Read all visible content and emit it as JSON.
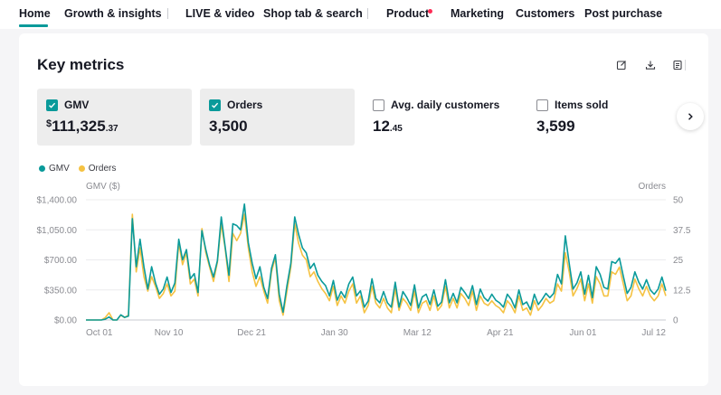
{
  "nav": {
    "items": [
      {
        "label": "Home"
      },
      {
        "label": "Growth & insights"
      },
      {
        "label": "LIVE & video"
      },
      {
        "label": "Shop tab & search"
      },
      {
        "label": "Product"
      },
      {
        "label": "Marketing"
      },
      {
        "label": "Customers"
      },
      {
        "label": "Post purchase"
      }
    ],
    "active": "Home",
    "product_dot_color": "#fe2c55"
  },
  "card": {
    "title": "Key metrics",
    "tools": [
      "edit-icon",
      "download-icon",
      "report-icon"
    ]
  },
  "metrics": [
    {
      "label": "GMV",
      "checked": true,
      "currency": "$",
      "main": "111,325",
      "decimal": ".37"
    },
    {
      "label": "Orders",
      "checked": true,
      "main": "3,500",
      "decimal": ""
    },
    {
      "label": "Avg. daily customers",
      "checked": false,
      "main": "12",
      "decimal": ".45"
    },
    {
      "label": "Items sold",
      "checked": false,
      "main": "3,599",
      "decimal": ""
    }
  ],
  "legend": [
    {
      "name": "GMV",
      "color": "#0a9a9a"
    },
    {
      "name": "Orders",
      "color": "#f5c242"
    }
  ],
  "chart_data": {
    "type": "line",
    "left_axis_label": "GMV ($)",
    "right_axis_label": "Orders",
    "left_ticks": [
      "$0.00",
      "$350.00",
      "$700.00",
      "$1,050.00",
      "$1,400.00"
    ],
    "right_ticks": [
      "0",
      "12.5",
      "25",
      "37.5",
      "50"
    ],
    "ylim_left": [
      0,
      1400
    ],
    "ylim_right": [
      0,
      50
    ],
    "x_ticks": [
      "Oct 01",
      "Nov 10",
      "Dec 21",
      "Jan 30",
      "Mar 12",
      "Apr 21",
      "Jun 01",
      "Jul 12"
    ],
    "grid": true,
    "series": [
      {
        "name": "GMV",
        "color": "#0a9a9a",
        "axis": "left",
        "values": [
          0,
          0,
          0,
          0,
          0,
          10,
          35,
          0,
          0,
          60,
          30,
          45,
          1180,
          620,
          940,
          620,
          360,
          620,
          430,
          300,
          360,
          500,
          320,
          430,
          940,
          700,
          820,
          480,
          540,
          320,
          1040,
          820,
          640,
          500,
          690,
          1200,
          860,
          520,
          1120,
          1100,
          1050,
          1350,
          900,
          660,
          480,
          620,
          380,
          250,
          600,
          760,
          300,
          90,
          400,
          660,
          1200,
          1000,
          840,
          780,
          600,
          660,
          520,
          450,
          400,
          280,
          460,
          230,
          330,
          260,
          420,
          500,
          280,
          340,
          150,
          220,
          480,
          250,
          200,
          330,
          200,
          150,
          440,
          150,
          330,
          260,
          170,
          410,
          140,
          270,
          300,
          180,
          350,
          160,
          210,
          470,
          200,
          310,
          200,
          380,
          320,
          250,
          400,
          180,
          360,
          260,
          220,
          300,
          230,
          200,
          150,
          300,
          240,
          140,
          350,
          180,
          210,
          120,
          300,
          180,
          240,
          310,
          260,
          310,
          530,
          420,
          980,
          660,
          360,
          430,
          560,
          300,
          520,
          260,
          620,
          530,
          380,
          360,
          680,
          660,
          720,
          510,
          310,
          380,
          560,
          440,
          360,
          470,
          350,
          300,
          360,
          500,
          340
        ]
      },
      {
        "name": "Orders",
        "color": "#f5c242",
        "axis": "right",
        "values": [
          0,
          0,
          0,
          0,
          0,
          1,
          3,
          0,
          0,
          2,
          1,
          2,
          44,
          20,
          30,
          18,
          12,
          18,
          14,
          9,
          11,
          15,
          10,
          12,
          32,
          23,
          28,
          15,
          17,
          10,
          38,
          28,
          22,
          16,
          24,
          40,
          30,
          16,
          36,
          33,
          36,
          44,
          30,
          20,
          14,
          18,
          12,
          7,
          20,
          26,
          8,
          2,
          12,
          22,
          40,
          32,
          27,
          25,
          18,
          20,
          16,
          13,
          11,
          8,
          14,
          6,
          10,
          7,
          12,
          15,
          7,
          10,
          3,
          6,
          14,
          7,
          5,
          9,
          5,
          3,
          13,
          4,
          9,
          7,
          4,
          12,
          3,
          7,
          8,
          4,
          10,
          4,
          6,
          14,
          5,
          9,
          5,
          11,
          9,
          6,
          12,
          4,
          10,
          7,
          6,
          8,
          6,
          5,
          3,
          8,
          6,
          3,
          10,
          4,
          5,
          2,
          8,
          4,
          6,
          9,
          7,
          8,
          15,
          12,
          28,
          20,
          10,
          13,
          17,
          8,
          15,
          7,
          18,
          15,
          10,
          10,
          20,
          19,
          22,
          15,
          8,
          10,
          17,
          13,
          10,
          14,
          10,
          8,
          10,
          15,
          10
        ]
      }
    ]
  }
}
